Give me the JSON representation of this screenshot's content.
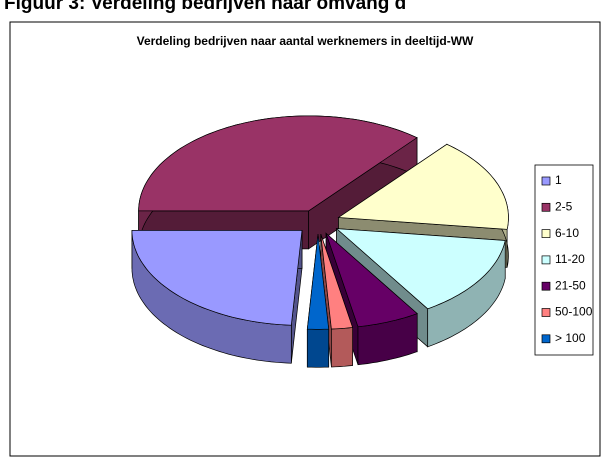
{
  "heading": "Figuur 3: Verdeling bedrijven naar omvang d",
  "chart_data": {
    "type": "pie3d",
    "title": "Verdeling bedrijven naar aantal werknemers in deeltijd-WW",
    "categories": [
      "1",
      "2-5",
      "6-10",
      "11-20",
      "21-50",
      "50-100",
      "> 100"
    ],
    "values": [
      24,
      36,
      16,
      14,
      6,
      2,
      2
    ],
    "colors": [
      "#9999ff",
      "#993366",
      "#ffffcc",
      "#ccffff",
      "#660066",
      "#ff8080",
      "#0066cc"
    ],
    "legend": "right"
  }
}
